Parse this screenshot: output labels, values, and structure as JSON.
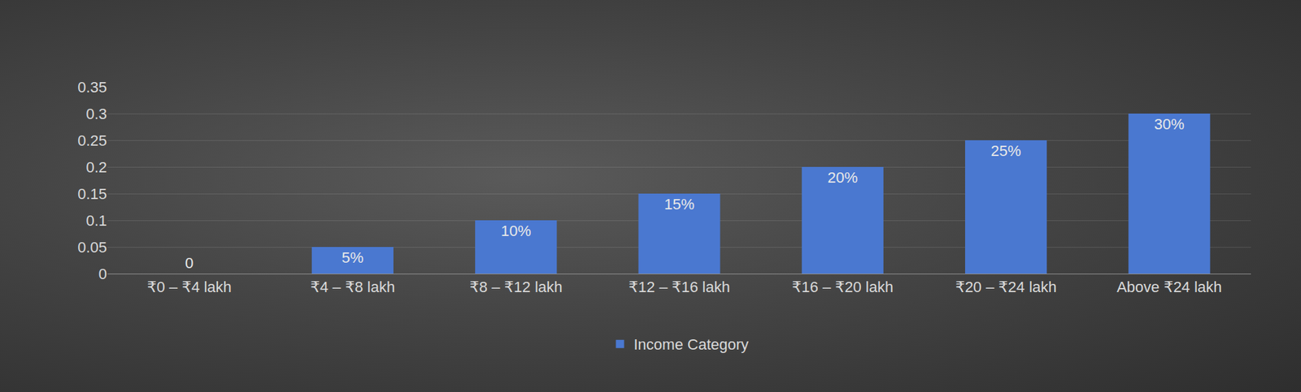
{
  "chart_data": {
    "type": "bar",
    "categories": [
      "₹0 – ₹4 lakh",
      "₹4 – ₹8 lakh",
      "₹8 – ₹12 lakh",
      "₹12 – ₹16 lakh",
      "₹16 – ₹20 lakh",
      "₹20 – ₹24 lakh",
      "Above ₹24 lakh"
    ],
    "series": [
      {
        "name": "Income Category",
        "color": "#4a78d0",
        "values": [
          0,
          0.05,
          0.1,
          0.15,
          0.2,
          0.25,
          0.3
        ],
        "value_labels": [
          "0",
          "5%",
          "10%",
          "15%",
          "20%",
          "25%",
          "30%"
        ]
      }
    ],
    "ylim": [
      0,
      0.35
    ],
    "yticks": [
      0,
      0.05,
      0.1,
      0.15,
      0.2,
      0.25,
      0.3,
      0.35
    ],
    "grid": true,
    "legend": "bottom",
    "data_labels": true
  }
}
